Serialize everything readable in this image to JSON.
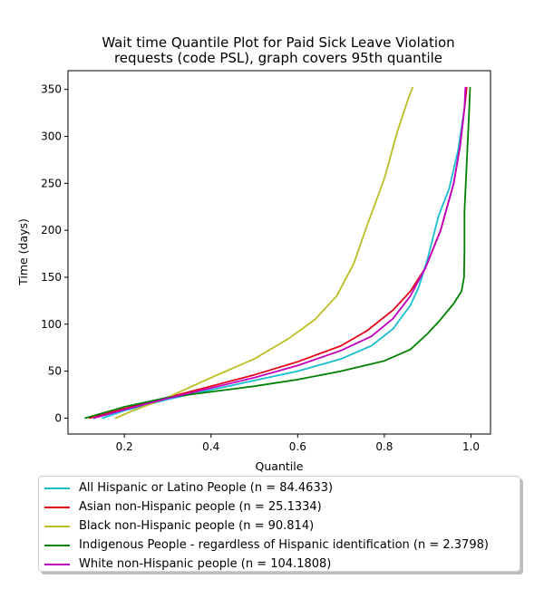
{
  "chart_data": {
    "type": "line",
    "title_lines": [
      "Wait time Quantile Plot for Paid Sick Leave Violation",
      "requests (code PSL), graph covers 95th quantile"
    ],
    "xlabel": "Quantile",
    "ylabel": "Time (days)",
    "xlim": [
      0.07,
      1.045
    ],
    "ylim": [
      -17,
      370
    ],
    "xticks": [
      0.2,
      0.4,
      0.6,
      0.8,
      1.0
    ],
    "xtick_labels": [
      "0.2",
      "0.4",
      "0.6",
      "0.8",
      "1.0"
    ],
    "yticks": [
      0,
      50,
      100,
      150,
      200,
      250,
      300,
      350
    ],
    "ytick_labels": [
      "0",
      "50",
      "100",
      "150",
      "200",
      "250",
      "300",
      "350"
    ],
    "grid": false,
    "legend_placement": "below",
    "series": [
      {
        "name": "All Hispanic or Latino People (n = 84.4633)",
        "color": "#17becf",
        "points": [
          [
            0.15,
            0
          ],
          [
            0.2,
            8
          ],
          [
            0.3,
            20
          ],
          [
            0.4,
            30
          ],
          [
            0.5,
            40
          ],
          [
            0.6,
            50
          ],
          [
            0.7,
            63
          ],
          [
            0.77,
            77
          ],
          [
            0.82,
            95
          ],
          [
            0.86,
            120
          ],
          [
            0.88,
            140
          ],
          [
            0.9,
            170
          ],
          [
            0.925,
            215
          ],
          [
            0.95,
            245
          ],
          [
            0.97,
            285
          ],
          [
            0.985,
            330
          ],
          [
            0.99,
            352
          ]
        ]
      },
      {
        "name": "Asian non-Hispanic people (n = 25.1334)",
        "color": "#e6001a",
        "points": [
          [
            0.12,
            0
          ],
          [
            0.2,
            10
          ],
          [
            0.3,
            22
          ],
          [
            0.4,
            34
          ],
          [
            0.5,
            46
          ],
          [
            0.6,
            60
          ],
          [
            0.7,
            77
          ],
          [
            0.76,
            93
          ],
          [
            0.82,
            115
          ],
          [
            0.86,
            135
          ],
          [
            0.895,
            160
          ],
          [
            0.93,
            200
          ],
          [
            0.96,
            250
          ],
          [
            0.975,
            290
          ],
          [
            0.985,
            330
          ],
          [
            0.99,
            352
          ]
        ]
      },
      {
        "name": "Black non-Hispanic people (n = 90.814)",
        "color": "#bcbd22",
        "points": [
          [
            0.18,
            0
          ],
          [
            0.22,
            8
          ],
          [
            0.3,
            22
          ],
          [
            0.4,
            43
          ],
          [
            0.5,
            63
          ],
          [
            0.58,
            85
          ],
          [
            0.64,
            105
          ],
          [
            0.69,
            130
          ],
          [
            0.73,
            165
          ],
          [
            0.76,
            205
          ],
          [
            0.8,
            255
          ],
          [
            0.83,
            305
          ],
          [
            0.855,
            340
          ],
          [
            0.865,
            352
          ]
        ]
      },
      {
        "name": "Indigenous People - regardless of Hispanic identification (n = 2.3798)",
        "color": "#008000",
        "points": [
          [
            0.11,
            0
          ],
          [
            0.2,
            12
          ],
          [
            0.3,
            22
          ],
          [
            0.4,
            28
          ],
          [
            0.5,
            34
          ],
          [
            0.6,
            41
          ],
          [
            0.7,
            50
          ],
          [
            0.8,
            61
          ],
          [
            0.86,
            73
          ],
          [
            0.9,
            90
          ],
          [
            0.93,
            105
          ],
          [
            0.96,
            122
          ],
          [
            0.978,
            135
          ],
          [
            0.984,
            150
          ],
          [
            0.985,
            180
          ],
          [
            0.985,
            220
          ],
          [
            0.99,
            270
          ],
          [
            0.995,
            320
          ],
          [
            0.998,
            352
          ]
        ]
      },
      {
        "name": "White non-Hispanic people (n = 104.1808)",
        "color": "#c000c0",
        "points": [
          [
            0.13,
            0
          ],
          [
            0.2,
            9
          ],
          [
            0.3,
            21
          ],
          [
            0.4,
            32
          ],
          [
            0.5,
            43
          ],
          [
            0.6,
            56
          ],
          [
            0.7,
            72
          ],
          [
            0.77,
            87
          ],
          [
            0.82,
            106
          ],
          [
            0.86,
            130
          ],
          [
            0.895,
            160
          ],
          [
            0.93,
            200
          ],
          [
            0.96,
            250
          ],
          [
            0.975,
            290
          ],
          [
            0.985,
            330
          ],
          [
            0.987,
            352
          ]
        ]
      }
    ]
  }
}
